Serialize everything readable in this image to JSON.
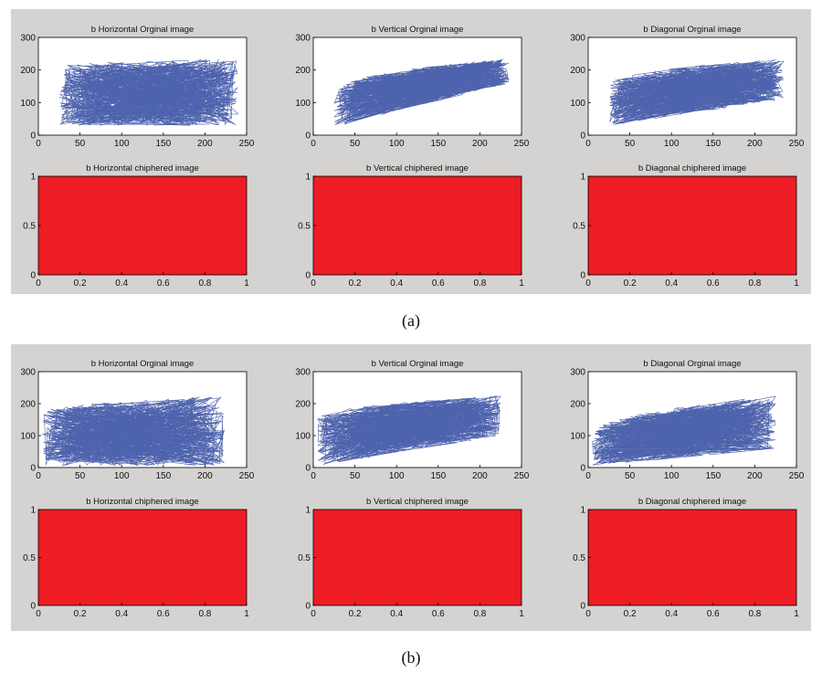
{
  "figure": {
    "caption_a": "(a)",
    "caption_b": "(b)",
    "colors": {
      "panel": "#d4d3d1",
      "original": "#3b52a4",
      "ciphered": "#ee1c24",
      "axes_bg": "#ffffff"
    }
  },
  "chart_data": [
    {
      "panel": "a",
      "type": "line",
      "direction": "horizontal",
      "title": "b Horizontal Orginal image",
      "xlim": [
        0,
        250
      ],
      "ylim": [
        0,
        300
      ],
      "xticks": [
        "0",
        "50",
        "100",
        "150",
        "200",
        "250"
      ],
      "yticks": [
        "0",
        "100",
        "200",
        "300"
      ],
      "xrange": [
        25,
        240
      ],
      "ymin_band": [
        30,
        30
      ],
      "ymax_band": [
        210,
        235
      ],
      "spread": 0.0
    },
    {
      "panel": "a",
      "type": "line",
      "direction": "vertical",
      "title": "b Vertical Orginal image",
      "xlim": [
        0,
        250
      ],
      "ylim": [
        0,
        300
      ],
      "xticks": [
        "0",
        "50",
        "100",
        "150",
        "200",
        "250"
      ],
      "yticks": [
        "0",
        "100",
        "200",
        "300"
      ],
      "xrange": [
        25,
        235
      ],
      "ymin_band": [
        25,
        160
      ],
      "ymax_band": [
        130,
        235
      ],
      "spread": 0.0
    },
    {
      "panel": "a",
      "type": "line",
      "direction": "diagonal",
      "title": "b Diagonal Orginal image",
      "xlim": [
        0,
        250
      ],
      "ylim": [
        0,
        300
      ],
      "xticks": [
        "0",
        "50",
        "100",
        "150",
        "200",
        "250"
      ],
      "yticks": [
        "0",
        "100",
        "200",
        "300"
      ],
      "xrange": [
        25,
        235
      ],
      "ymin_band": [
        30,
        110
      ],
      "ymax_band": [
        150,
        235
      ],
      "spread": 0.0
    },
    {
      "panel": "a",
      "type": "area",
      "direction": "horizontal",
      "title": "b Horizontal chiphered image",
      "xlim": [
        0,
        1
      ],
      "ylim": [
        0,
        1
      ],
      "xticks": [
        "0",
        "0.2",
        "0.4",
        "0.6",
        "0.8",
        "1"
      ],
      "yticks": [
        "0",
        "0.5",
        "1"
      ],
      "fill": [
        0,
        1
      ]
    },
    {
      "panel": "a",
      "type": "area",
      "direction": "vertical",
      "title": "b Vertical chiphered image",
      "xlim": [
        0,
        1
      ],
      "ylim": [
        0,
        1
      ],
      "xticks": [
        "0",
        "0.2",
        "0.4",
        "0.6",
        "0.8",
        "1"
      ],
      "yticks": [
        "0",
        "0.5",
        "1"
      ],
      "fill": [
        0,
        1
      ]
    },
    {
      "panel": "a",
      "type": "area",
      "direction": "diagonal",
      "title": "b Diagonal chiphered image",
      "xlim": [
        0,
        1
      ],
      "ylim": [
        0,
        1
      ],
      "xticks": [
        "0",
        "0.2",
        "0.4",
        "0.6",
        "0.8",
        "1"
      ],
      "yticks": [
        "0",
        "0.5",
        "1"
      ],
      "fill": [
        0,
        1
      ]
    },
    {
      "panel": "b",
      "type": "line",
      "direction": "horizontal",
      "title": "b Horizontal Orginal image",
      "xlim": [
        0,
        250
      ],
      "ylim": [
        0,
        300
      ],
      "xticks": [
        "0",
        "50",
        "100",
        "150",
        "200",
        "250"
      ],
      "yticks": [
        "0",
        "100",
        "200",
        "300"
      ],
      "xrange": [
        5,
        225
      ],
      "ymin_band": [
        5,
        5
      ],
      "ymax_band": [
        170,
        225
      ],
      "spread": 0.0
    },
    {
      "panel": "b",
      "type": "line",
      "direction": "vertical",
      "title": "b Vertical Orginal image",
      "xlim": [
        0,
        250
      ],
      "ylim": [
        0,
        300
      ],
      "xticks": [
        "0",
        "50",
        "100",
        "150",
        "200",
        "250"
      ],
      "yticks": [
        "0",
        "100",
        "200",
        "300"
      ],
      "xrange": [
        5,
        225
      ],
      "ymin_band": [
        5,
        100
      ],
      "ymax_band": [
        150,
        225
      ],
      "spread": 0.0
    },
    {
      "panel": "b",
      "type": "line",
      "direction": "diagonal",
      "title": "b Diagonal Orginal image",
      "xlim": [
        0,
        250
      ],
      "ylim": [
        0,
        300
      ],
      "xticks": [
        "0",
        "50",
        "100",
        "150",
        "200",
        "250"
      ],
      "yticks": [
        "0",
        "100",
        "200",
        "300"
      ],
      "xrange": [
        5,
        225
      ],
      "ymin_band": [
        5,
        60
      ],
      "ymax_band": [
        100,
        225
      ],
      "spread": 0.0
    },
    {
      "panel": "b",
      "type": "area",
      "direction": "horizontal",
      "title": "b Horizontal chiphered image",
      "xlim": [
        0,
        1
      ],
      "ylim": [
        0,
        1
      ],
      "xticks": [
        "0",
        "0.2",
        "0.4",
        "0.6",
        "0.8",
        "1"
      ],
      "yticks": [
        "0",
        "0.5",
        "1"
      ],
      "fill": [
        0,
        1
      ]
    },
    {
      "panel": "b",
      "type": "area",
      "direction": "vertical",
      "title": "b Vertical chiphered image",
      "xlim": [
        0,
        1
      ],
      "ylim": [
        0,
        1
      ],
      "xticks": [
        "0",
        "0.2",
        "0.4",
        "0.6",
        "0.8",
        "1"
      ],
      "yticks": [
        "0",
        "0.5",
        "1"
      ],
      "fill": [
        0,
        1
      ]
    },
    {
      "panel": "b",
      "type": "area",
      "direction": "diagonal",
      "title": "b Diagonal chiphered image",
      "xlim": [
        0,
        1
      ],
      "ylim": [
        0,
        1
      ],
      "xticks": [
        "0",
        "0.2",
        "0.4",
        "0.6",
        "0.8",
        "1"
      ],
      "yticks": [
        "0",
        "0.5",
        "1"
      ],
      "fill": [
        0,
        1
      ]
    }
  ]
}
